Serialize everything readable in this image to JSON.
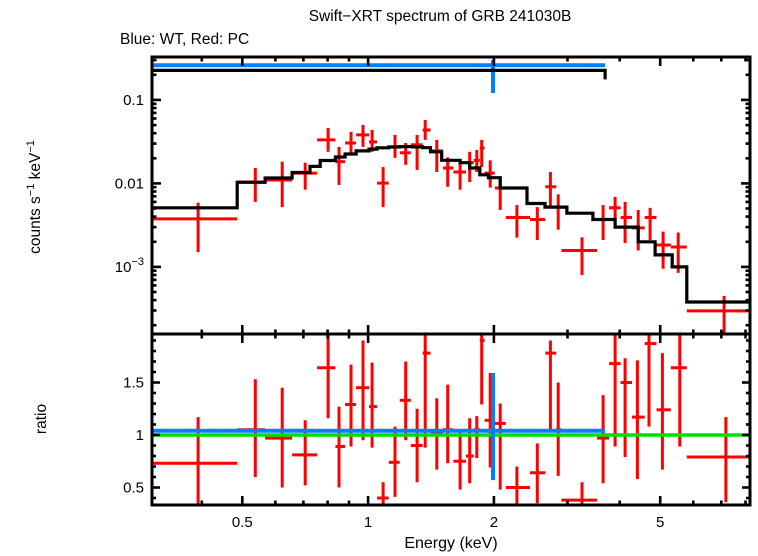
{
  "title": "Swift−XRT spectrum of GRB 241030B",
  "subtitle": "Blue: WT, Red: PC",
  "colors": {
    "wt_blue": "#0080ff",
    "pc_red": "#ff0000",
    "model_black": "#000000",
    "unity_green": "#00dd00",
    "background": "#ffffff"
  },
  "chart_data": {
    "type": "line",
    "title": "Swift−XRT spectrum of GRB 241030B",
    "annotation": "Blue: WT, Red: PC",
    "xlabel": "Energy (keV)",
    "xscale": "log",
    "xlim": [
      0.304,
      8.2
    ],
    "x_major_ticks": [
      0.5,
      1,
      2,
      5
    ],
    "x_major_labels": [
      "0.5",
      "1",
      "2",
      "5"
    ],
    "legend": {
      "blue_series": "WT",
      "red_series": "PC",
      "position": "top-left-above-plot"
    },
    "panels": [
      {
        "name": "spectrum",
        "ylabel": "counts s−1 keV−1",
        "ylabel_parts": [
          {
            "t": "counts s",
            "sup": false
          },
          {
            "t": "−1",
            "sup": true
          },
          {
            "t": " keV",
            "sup": false
          },
          {
            "t": "−1",
            "sup": true
          }
        ],
        "yscale": "log",
        "ylim": [
          0.000157,
          0.327
        ],
        "y_major_ticks": [
          0.1,
          0.01,
          0.001
        ],
        "y_major_labels": [
          {
            "t": "0.1",
            "sup": null
          },
          {
            "t": "0.01",
            "sup": null
          },
          {
            "t": "10",
            "sup": "−3"
          }
        ],
        "wt_point": {
          "x": 1.99,
          "xlo": 0.304,
          "xhi": 3.69,
          "y": 0.26,
          "ylo": 0.121,
          "yhi": 0.3
        },
        "wt_model": {
          "xlo": 0.304,
          "xhi": 3.69,
          "y": 0.226
        },
        "pc_points": [
          [
            0.392,
            0.304,
            0.486,
            0.00376,
            0.0015,
            0.00587
          ],
          [
            0.537,
            0.486,
            0.567,
            0.0104,
            0.006,
            0.0153
          ],
          [
            0.623,
            0.567,
            0.658,
            0.011,
            0.0052,
            0.0182
          ],
          [
            0.707,
            0.658,
            0.755,
            0.0133,
            0.0084,
            0.0177
          ],
          [
            0.802,
            0.755,
            0.835,
            0.0332,
            0.0239,
            0.0463
          ],
          [
            0.852,
            0.835,
            0.881,
            0.0182,
            0.0096,
            0.0274
          ],
          [
            0.91,
            0.881,
            0.936,
            0.0305,
            0.0219,
            0.0414
          ],
          [
            0.972,
            0.936,
            1.005,
            0.0381,
            0.0274,
            0.0502
          ],
          [
            1.022,
            1.005,
            1.05,
            0.0314,
            0.0239,
            0.0437
          ],
          [
            1.086,
            1.05,
            1.12,
            0.0101,
            0.0052,
            0.0157
          ],
          [
            1.16,
            1.12,
            1.19,
            0.0274,
            0.0202,
            0.0381
          ],
          [
            1.23,
            1.19,
            1.265,
            0.0233,
            0.0167,
            0.0305
          ],
          [
            1.31,
            1.265,
            1.35,
            0.029,
            0.0145,
            0.0381
          ],
          [
            1.37,
            1.35,
            1.41,
            0.0437,
            0.0332,
            0.0576
          ],
          [
            1.46,
            1.41,
            1.51,
            0.0245,
            0.0137,
            0.0332
          ],
          [
            1.55,
            1.51,
            1.6,
            0.0153,
            0.0091,
            0.0205
          ],
          [
            1.66,
            1.6,
            1.715,
            0.0137,
            0.0084,
            0.0189
          ],
          [
            1.75,
            1.715,
            1.79,
            0.0177,
            0.0104,
            0.0239
          ],
          [
            1.82,
            1.79,
            1.85,
            0.0189,
            0.0137,
            0.0252
          ],
          [
            1.87,
            1.85,
            1.9,
            0.0266,
            0.0157,
            0.0332
          ],
          [
            1.96,
            1.9,
            2.01,
            0.0133,
            0.0089,
            0.0189
          ],
          [
            2.07,
            2.01,
            2.135,
            0.0088,
            0.0048,
            0.012
          ],
          [
            2.27,
            2.135,
            2.44,
            0.0039,
            0.00224,
            0.0055
          ],
          [
            2.54,
            2.44,
            2.655,
            0.0037,
            0.0021,
            0.0052
          ],
          [
            2.73,
            2.655,
            2.82,
            0.0091,
            0.0052,
            0.0137
          ],
          [
            2.85,
            2.82,
            2.9,
            0.0052,
            0.00279,
            0.0074
          ],
          [
            3.25,
            2.9,
            3.53,
            0.00157,
            0.0008,
            0.00226
          ],
          [
            3.65,
            3.53,
            3.77,
            0.0037,
            0.0021,
            0.0055
          ],
          [
            3.9,
            3.77,
            4.02,
            0.0051,
            0.00293,
            0.0069
          ],
          [
            4.12,
            4.02,
            4.28,
            0.0039,
            0.00193,
            0.006
          ],
          [
            4.43,
            4.28,
            4.59,
            0.00293,
            0.00157,
            0.0048
          ],
          [
            4.73,
            4.59,
            4.9,
            0.0039,
            0.0021,
            0.0051
          ],
          [
            5.08,
            4.9,
            5.3,
            0.00183,
            0.00095,
            0.00265
          ],
          [
            5.52,
            5.3,
            5.79,
            0.00173,
            0.00085,
            0.00258
          ],
          [
            7.11,
            5.79,
            8.2,
            0.000297,
            0.00012,
            0.000449
          ]
        ],
        "pc_model_steps": [
          [
            0.304,
            0.486,
            0.0051
          ],
          [
            0.486,
            0.567,
            0.0103
          ],
          [
            0.567,
            0.658,
            0.0116
          ],
          [
            0.658,
            0.726,
            0.0135
          ],
          [
            0.726,
            0.768,
            0.016
          ],
          [
            0.768,
            0.835,
            0.0188
          ],
          [
            0.835,
            0.881,
            0.0207
          ],
          [
            0.881,
            0.936,
            0.0225
          ],
          [
            0.936,
            1.005,
            0.0245
          ],
          [
            1.005,
            1.05,
            0.0258
          ],
          [
            1.05,
            1.12,
            0.0267
          ],
          [
            1.12,
            1.19,
            0.0273
          ],
          [
            1.19,
            1.28,
            0.0276
          ],
          [
            1.28,
            1.35,
            0.0274
          ],
          [
            1.35,
            1.41,
            0.0268
          ],
          [
            1.41,
            1.5,
            0.0239
          ],
          [
            1.5,
            1.66,
            0.0189
          ],
          [
            1.66,
            1.75,
            0.0177
          ],
          [
            1.75,
            1.85,
            0.0153
          ],
          [
            1.85,
            1.94,
            0.0127
          ],
          [
            1.94,
            2.07,
            0.0117
          ],
          [
            2.07,
            2.4,
            0.0088
          ],
          [
            2.4,
            2.65,
            0.00575
          ],
          [
            2.65,
            2.99,
            0.0052
          ],
          [
            2.99,
            3.45,
            0.0044
          ],
          [
            3.45,
            3.9,
            0.0037
          ],
          [
            3.9,
            4.43,
            0.003
          ],
          [
            4.43,
            4.86,
            0.002
          ],
          [
            4.86,
            5.34,
            0.00139
          ],
          [
            5.34,
            5.79,
            0.001
          ],
          [
            5.79,
            8.2,
            0.00038
          ]
        ]
      },
      {
        "name": "ratio",
        "ylabel": "ratio",
        "yscale": "linear",
        "ylim": [
          0.3333,
          1.9619
        ],
        "y_major_ticks": [
          0.5,
          1,
          1.5
        ],
        "y_major_labels": [
          {
            "t": "0.5",
            "sup": null
          },
          {
            "t": "1",
            "sup": null
          },
          {
            "t": "1.5",
            "sup": null
          }
        ],
        "unity_line": 1.0,
        "wt_point": {
          "x": 1.99,
          "xlo": 0.304,
          "xhi": 3.69,
          "y": 1.04,
          "ylo": 0.57,
          "yhi": 1.59
        },
        "pc_points": [
          [
            0.392,
            0.304,
            0.486,
            0.73,
            0.3,
            1.17
          ],
          [
            0.537,
            0.486,
            0.567,
            1.05,
            0.6,
            1.53
          ],
          [
            0.623,
            0.567,
            0.658,
            0.97,
            0.5,
            1.45
          ],
          [
            0.707,
            0.658,
            0.755,
            0.81,
            0.52,
            1.14
          ],
          [
            0.802,
            0.755,
            0.835,
            1.64,
            1.16,
            1.97
          ],
          [
            0.852,
            0.835,
            0.881,
            0.89,
            0.5,
            1.27
          ],
          [
            0.91,
            0.881,
            0.936,
            1.29,
            0.89,
            1.67
          ],
          [
            0.972,
            0.936,
            1.005,
            1.45,
            0.95,
            1.9
          ],
          [
            1.022,
            1.005,
            1.05,
            1.27,
            0.88,
            1.69
          ],
          [
            1.086,
            1.05,
            1.12,
            0.4,
            0.3,
            0.55
          ],
          [
            1.16,
            1.12,
            1.19,
            0.74,
            0.41,
            1.08
          ],
          [
            1.23,
            1.19,
            1.265,
            1.33,
            0.95,
            1.7
          ],
          [
            1.31,
            1.265,
            1.35,
            0.9,
            0.55,
            1.25
          ],
          [
            1.37,
            1.35,
            1.41,
            1.78,
            0.88,
            1.97
          ],
          [
            1.46,
            1.41,
            1.51,
            1.02,
            0.67,
            1.35
          ],
          [
            1.55,
            1.51,
            1.6,
            1.05,
            0.73,
            1.48
          ],
          [
            1.66,
            1.6,
            1.715,
            0.75,
            0.48,
            1.05
          ],
          [
            1.75,
            1.715,
            1.79,
            0.8,
            0.54,
            1.16
          ],
          [
            1.82,
            1.79,
            1.85,
            1.05,
            0.78,
            1.18
          ],
          [
            1.87,
            1.85,
            1.9,
            1.9,
            1.29,
            1.97
          ],
          [
            1.96,
            1.9,
            2.01,
            1.14,
            0.69,
            1.59
          ],
          [
            2.07,
            2.01,
            2.135,
            1.11,
            0.48,
            1.3
          ],
          [
            2.27,
            2.135,
            2.44,
            0.5,
            0.3,
            0.7
          ],
          [
            2.54,
            2.44,
            2.655,
            0.64,
            0.35,
            0.92
          ],
          [
            2.73,
            2.655,
            2.82,
            1.78,
            1.05,
            1.9
          ],
          [
            2.85,
            2.82,
            2.9,
            1.05,
            0.61,
            1.5
          ],
          [
            3.25,
            2.9,
            3.53,
            0.38,
            0.3,
            0.55
          ],
          [
            3.65,
            3.53,
            3.77,
            0.97,
            0.54,
            1.38
          ],
          [
            3.9,
            3.77,
            4.02,
            1.68,
            0.89,
            1.97
          ],
          [
            4.12,
            4.02,
            4.28,
            1.5,
            0.79,
            1.73
          ],
          [
            4.41,
            4.28,
            4.59,
            1.17,
            0.58,
            1.71
          ],
          [
            4.7,
            4.59,
            4.9,
            1.87,
            1.08,
            1.97
          ],
          [
            5.06,
            4.9,
            5.3,
            1.24,
            0.67,
            1.78
          ],
          [
            5.57,
            5.3,
            5.79,
            1.64,
            0.89,
            1.97
          ],
          [
            7.18,
            5.79,
            8.2,
            0.79,
            0.36,
            1.17
          ]
        ]
      }
    ]
  }
}
